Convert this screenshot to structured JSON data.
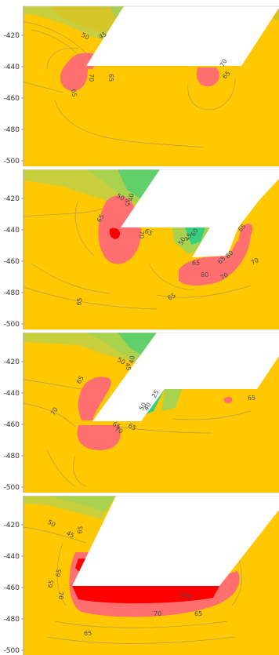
{
  "colors": {
    "background_fill": "#ffc800",
    "mask": "#ffffff",
    "hot": "#ff6f6f",
    "hotter": "#ff0000",
    "green_light": "#c8d23a",
    "green_mid": "#9ccf55",
    "green_deep": "#35d07e",
    "olive": "#d2c81e",
    "contour_line": "#9a8f6e"
  },
  "chart_data": [
    {
      "type": "contour",
      "panel": 1,
      "yticks": [
        "-420",
        "-440",
        "-460",
        "-480",
        "-500"
      ],
      "contour_labels": [
        "50",
        "45",
        "65",
        "70",
        "65",
        "70",
        "65"
      ]
    },
    {
      "type": "contour",
      "panel": 2,
      "yticks": [
        "-420",
        "-440",
        "-460",
        "-480",
        "-500"
      ],
      "contour_labels": [
        "50",
        "45",
        "40",
        "65",
        "70",
        "65",
        "50",
        "45",
        "60",
        "65",
        "80",
        "70",
        "65",
        "80",
        "70",
        "65",
        "65",
        "65"
      ]
    },
    {
      "type": "contour",
      "panel": 3,
      "yticks": [
        "-420",
        "-440",
        "-460",
        "-480",
        "-500"
      ],
      "contour_labels": [
        "50",
        "45",
        "40",
        "65",
        "70",
        "25",
        "65",
        "70",
        "65",
        "50",
        "40",
        "65"
      ]
    },
    {
      "type": "contour",
      "panel": 4,
      "yticks": [
        "-420",
        "-440",
        "-460",
        "-480",
        "-500"
      ],
      "contour_labels": [
        "50",
        "45",
        "65",
        "65",
        "65",
        "70",
        "100",
        "70",
        "65",
        "65"
      ]
    }
  ]
}
